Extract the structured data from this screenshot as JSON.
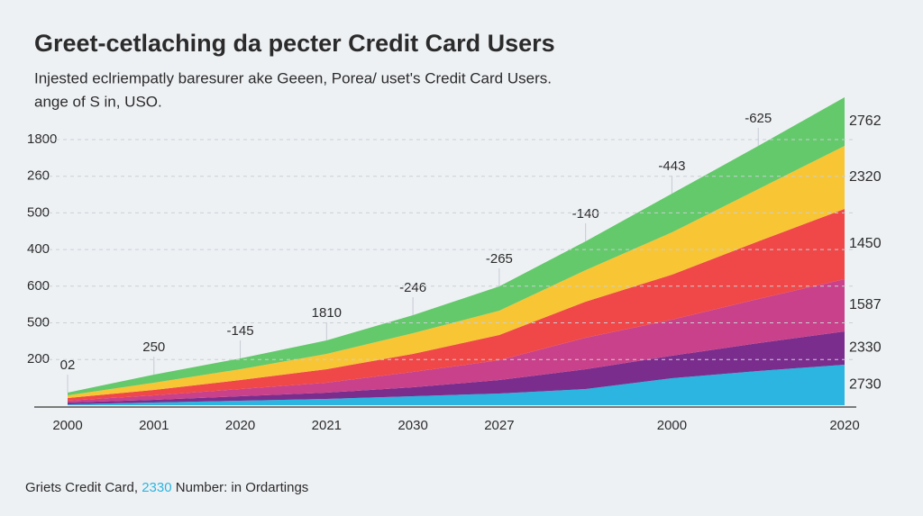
{
  "chart_data": {
    "type": "stacked-area",
    "title": "Greet-cetlaching da pecter Credit Card Users",
    "subtitle": [
      "Injested eclriempatly baresurer ake Geeen, Porea/ uset's Credit Card Users.",
      "ange of S in, USO."
    ],
    "y_labels": [
      "1800",
      "260",
      "500",
      "400",
      "600",
      "500",
      "200"
    ],
    "categories": [
      "2000",
      "2001",
      "2020",
      "2021",
      "2030",
      "2027",
      null,
      "2000",
      null,
      "2020"
    ],
    "ylim": [
      0,
      340
    ],
    "grid": true,
    "series": [
      {
        "color": "#2bb5e0",
        "values": [
          1,
          3,
          5,
          7,
          10,
          13,
          18,
          30,
          38,
          45
        ],
        "end_label": "2730"
      },
      {
        "color": "#7b2d8e",
        "values": [
          2,
          3,
          5,
          7,
          10,
          15,
          22,
          25,
          31,
          37
        ],
        "end_label": "2330"
      },
      {
        "color": "#c9418a",
        "values": [
          2,
          5,
          8,
          11,
          17,
          22,
          35,
          40,
          49,
          58
        ],
        "end_label": "1587"
      },
      {
        "color": "#f04848",
        "values": [
          3,
          6,
          10,
          15,
          20,
          28,
          40,
          50,
          64,
          78
        ],
        "end_label": "1450"
      },
      {
        "color": "#f8c535",
        "values": [
          3,
          8,
          12,
          17,
          23,
          27,
          35,
          47,
          58,
          70
        ],
        "end_label": "2320"
      },
      {
        "color": "#63c96b",
        "values": [
          3,
          9,
          12,
          15,
          20,
          27,
          32,
          43,
          48,
          54
        ],
        "end_label": "2762"
      }
    ],
    "annotations": [
      {
        "text": "02",
        "color": "#3a9fd0"
      },
      {
        "text": "250",
        "color": "#3a9fd0"
      },
      {
        "text": "-145",
        "color": "#3a9fd0"
      },
      {
        "text": "1810",
        "color": "#3a9fd0"
      },
      {
        "text": "-246",
        "color": "#3a9fd0"
      },
      {
        "text": "-265",
        "color": "#3a9fd0"
      },
      {
        "text": "-140",
        "color": "#3a9fd0"
      },
      {
        "text": "-443",
        "color": "#3a9fd0"
      },
      {
        "text": "-625",
        "color": "#4fb85a"
      }
    ],
    "footer": {
      "before": "Griets Credit Card, ",
      "highlight": "2330",
      "highlight_color": "#2bb5e0",
      "after": " Number: in Ordartings"
    }
  }
}
